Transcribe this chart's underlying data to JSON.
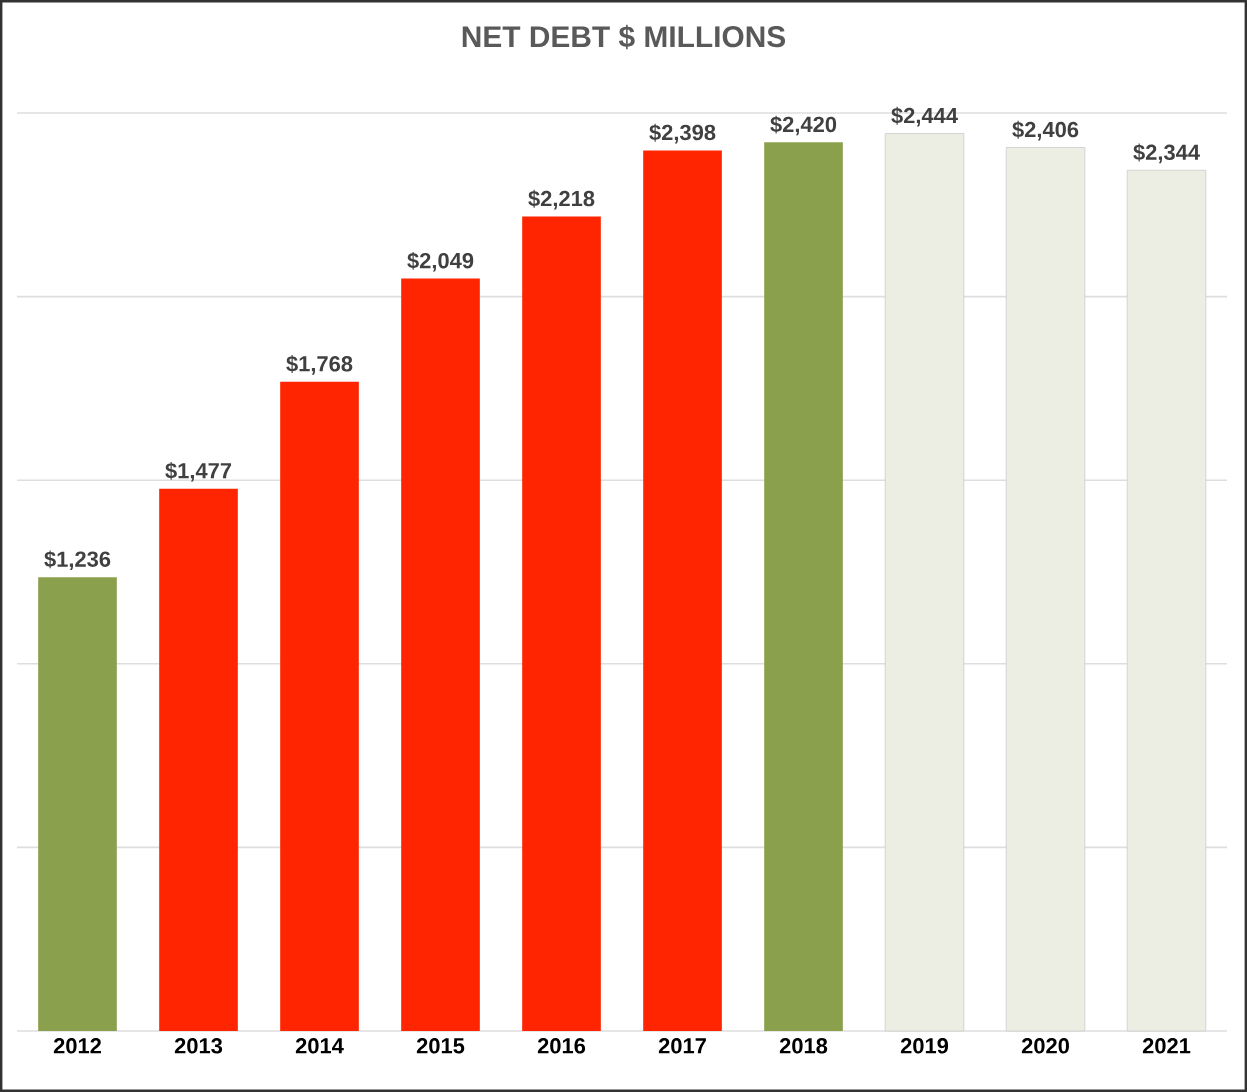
{
  "chart_data": {
    "type": "bar",
    "title": "NET DEBT $ MILLIONS",
    "categories": [
      "2012",
      "2013",
      "2014",
      "2015",
      "2016",
      "2017",
      "2018",
      "2019",
      "2020",
      "2021"
    ],
    "values": [
      1236,
      1477,
      1768,
      2049,
      2218,
      2398,
      2420,
      2444,
      2406,
      2344
    ],
    "value_labels": [
      "$1,236",
      "$1,477",
      "$1,768",
      "$2,049",
      "$2,218",
      "$2,398",
      "$2,420",
      "$2,444",
      "$2,406",
      "$2,344"
    ],
    "colors": [
      "#8aa04d",
      "#ff2500",
      "#ff2500",
      "#ff2500",
      "#ff2500",
      "#ff2500",
      "#8aa04d",
      "#eceee4",
      "#eceee4",
      "#eceee4"
    ],
    "ylim": [
      0,
      2500
    ],
    "yticks": [
      {
        "value": 0,
        "label": null
      },
      {
        "value": 500,
        "label": null
      },
      {
        "value": 1000,
        "label": null
      },
      {
        "value": 1500,
        "label": null
      },
      {
        "value": 2000,
        "label": null
      },
      {
        "value": 2500,
        "label": null
      }
    ],
    "grid": "y",
    "tick_labels": "x"
  }
}
